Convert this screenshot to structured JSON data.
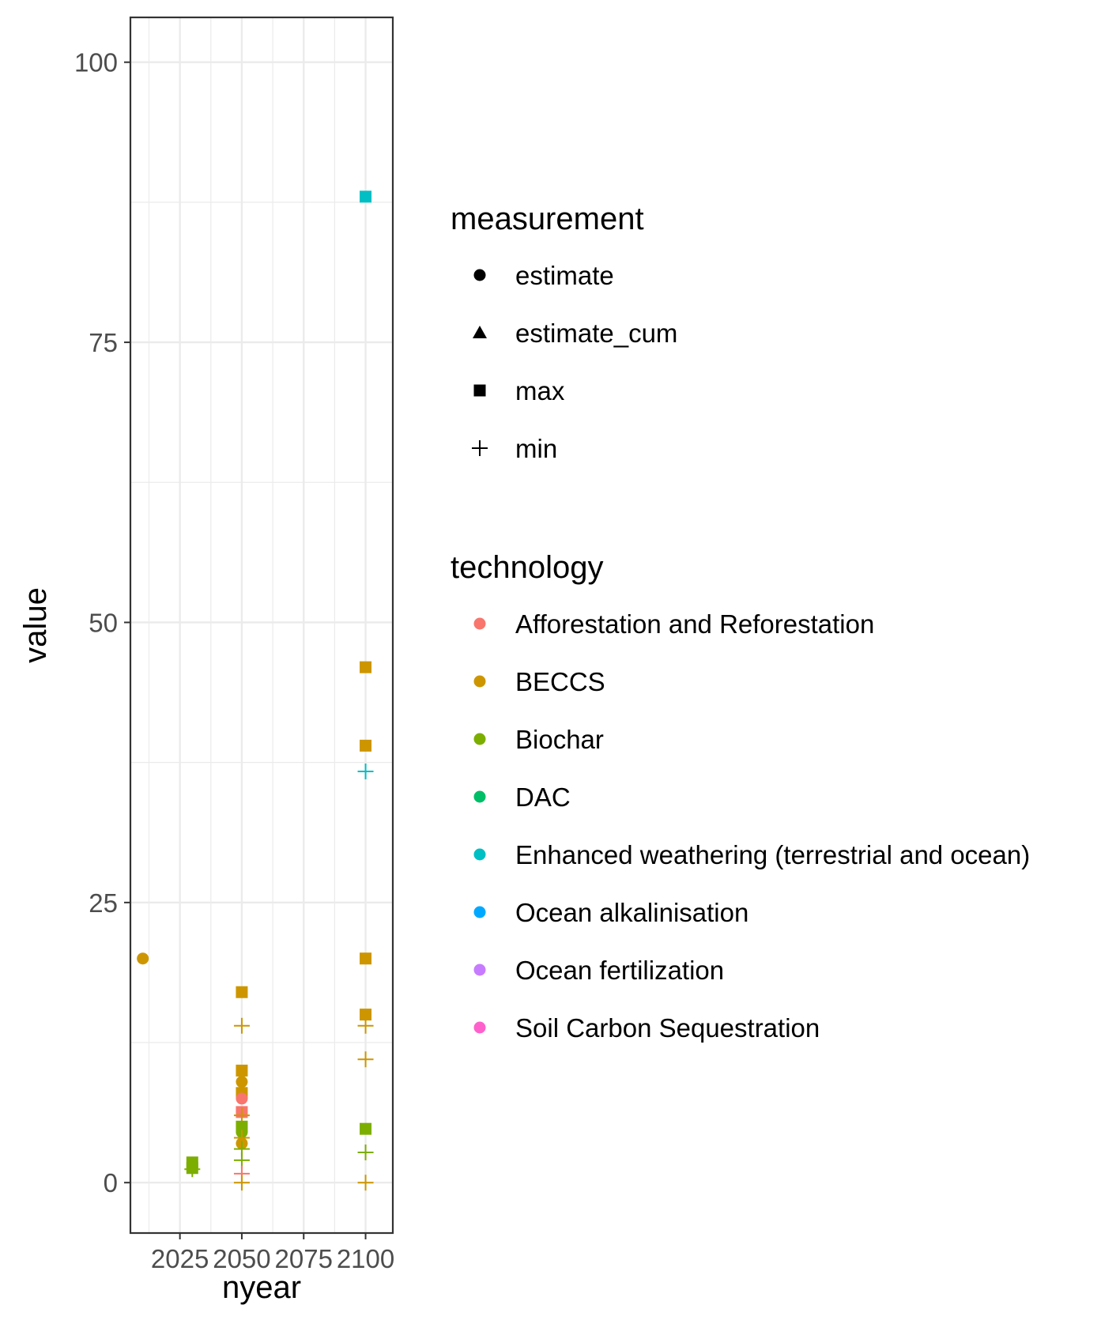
{
  "chart_data": {
    "type": "scatter",
    "xlabel": "nyear",
    "ylabel": "value",
    "xlim": [
      2005,
      2111
    ],
    "ylim": [
      -4.5,
      104
    ],
    "x_ticks": [
      2025,
      2050,
      2075,
      2100
    ],
    "y_ticks": [
      0,
      25,
      50,
      75,
      100
    ],
    "grid": true,
    "legend_position": "right",
    "measurement_legend": {
      "title": "measurement",
      "entries": [
        {
          "label": "estimate",
          "shape": "circle"
        },
        {
          "label": "estimate_cum",
          "shape": "triangle"
        },
        {
          "label": "max",
          "shape": "square"
        },
        {
          "label": "min",
          "shape": "plus"
        }
      ]
    },
    "technology_legend": {
      "title": "technology",
      "entries": [
        {
          "label": "Afforestation and Reforestation",
          "color": "#F8766D"
        },
        {
          "label": "BECCS",
          "color": "#CD9600"
        },
        {
          "label": "Biochar",
          "color": "#7CAE00"
        },
        {
          "label": "DAC",
          "color": "#00BE67"
        },
        {
          "label": "Enhanced weathering (terrestrial and ocean)",
          "color": "#00BFC4"
        },
        {
          "label": "Ocean alkalinisation",
          "color": "#00A9FF"
        },
        {
          "label": "Ocean fertilization",
          "color": "#C77CFF"
        },
        {
          "label": "Soil Carbon Sequestration",
          "color": "#FF61CC"
        }
      ]
    },
    "points": [
      {
        "x": 2010,
        "y": 20,
        "measurement": "estimate",
        "technology": "BECCS"
      },
      {
        "x": 2030,
        "y": 1.8,
        "measurement": "max",
        "technology": "Biochar"
      },
      {
        "x": 2030,
        "y": 1.3,
        "measurement": "max",
        "technology": "Biochar"
      },
      {
        "x": 2030,
        "y": 1.2,
        "measurement": "min",
        "technology": "Biochar"
      },
      {
        "x": 2050,
        "y": 17,
        "measurement": "max",
        "technology": "BECCS"
      },
      {
        "x": 2050,
        "y": 14,
        "measurement": "min",
        "technology": "BECCS"
      },
      {
        "x": 2050,
        "y": 10,
        "measurement": "max",
        "technology": "BECCS"
      },
      {
        "x": 2050,
        "y": 9,
        "measurement": "estimate",
        "technology": "BECCS"
      },
      {
        "x": 2050,
        "y": 8,
        "measurement": "max",
        "technology": "BECCS"
      },
      {
        "x": 2050,
        "y": 7.5,
        "measurement": "estimate",
        "technology": "Afforestation and Reforestation"
      },
      {
        "x": 2050,
        "y": 6.3,
        "measurement": "max",
        "technology": "Afforestation and Reforestation"
      },
      {
        "x": 2050,
        "y": 6,
        "measurement": "min",
        "technology": "BECCS"
      },
      {
        "x": 2050,
        "y": 5,
        "measurement": "max",
        "technology": "Biochar"
      },
      {
        "x": 2050,
        "y": 4.5,
        "measurement": "estimate",
        "technology": "Biochar"
      },
      {
        "x": 2050,
        "y": 4,
        "measurement": "min",
        "technology": "BECCS"
      },
      {
        "x": 2050,
        "y": 3.5,
        "measurement": "estimate",
        "technology": "BECCS"
      },
      {
        "x": 2050,
        "y": 3,
        "measurement": "min",
        "technology": "Biochar"
      },
      {
        "x": 2050,
        "y": 2,
        "measurement": "min",
        "technology": "Biochar"
      },
      {
        "x": 2050,
        "y": 0.8,
        "measurement": "min",
        "technology": "Afforestation and Reforestation"
      },
      {
        "x": 2050,
        "y": 0,
        "measurement": "min",
        "technology": "BECCS"
      },
      {
        "x": 2100,
        "y": 88,
        "measurement": "max",
        "technology": "Enhanced weathering (terrestrial and ocean)"
      },
      {
        "x": 2100,
        "y": 46,
        "measurement": "max",
        "technology": "BECCS"
      },
      {
        "x": 2100,
        "y": 39,
        "measurement": "max",
        "technology": "BECCS"
      },
      {
        "x": 2100,
        "y": 36.7,
        "measurement": "min",
        "technology": "Enhanced weathering (terrestrial and ocean)"
      },
      {
        "x": 2100,
        "y": 20,
        "measurement": "max",
        "technology": "BECCS"
      },
      {
        "x": 2100,
        "y": 15,
        "measurement": "max",
        "technology": "BECCS"
      },
      {
        "x": 2100,
        "y": 14,
        "measurement": "min",
        "technology": "BECCS"
      },
      {
        "x": 2100,
        "y": 11,
        "measurement": "min",
        "technology": "BECCS"
      },
      {
        "x": 2100,
        "y": 4.8,
        "measurement": "max",
        "technology": "Biochar"
      },
      {
        "x": 2100,
        "y": 2.7,
        "measurement": "min",
        "technology": "Biochar"
      },
      {
        "x": 2100,
        "y": 0,
        "measurement": "min",
        "technology": "BECCS"
      }
    ]
  }
}
